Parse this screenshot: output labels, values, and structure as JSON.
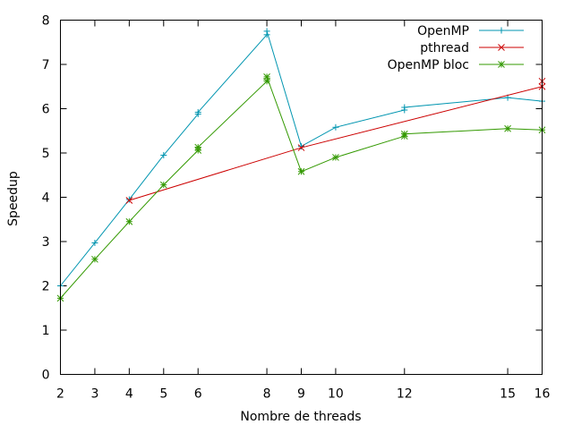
{
  "chart_data": {
    "type": "line",
    "title": "",
    "xlabel": "Nombre de threads",
    "ylabel": "Speedup",
    "x_ticks": [
      2,
      3,
      4,
      5,
      6,
      8,
      9,
      10,
      12,
      15,
      16
    ],
    "y_ticks": [
      0,
      1,
      2,
      3,
      4,
      5,
      6,
      7,
      8
    ],
    "xlim": [
      2,
      16
    ],
    "ylim": [
      0,
      8
    ],
    "grid": false,
    "legend_position": "top-right",
    "series": [
      {
        "name": "OpenMP",
        "color": "#0095b0",
        "marker": "plus",
        "x": [
          2,
          3,
          4,
          5,
          6,
          6,
          8,
          8,
          9,
          10,
          12,
          12,
          15,
          16
        ],
        "y": [
          2.0,
          2.97,
          3.95,
          4.95,
          5.88,
          5.92,
          7.67,
          7.75,
          5.15,
          5.58,
          5.97,
          6.03,
          6.25,
          6.17
        ]
      },
      {
        "name": "pthread",
        "color": "#cc0000",
        "marker": "cross",
        "x": [
          4,
          9,
          16,
          16
        ],
        "y": [
          3.93,
          5.12,
          6.5,
          6.62
        ]
      },
      {
        "name": "OpenMP bloc",
        "color": "#339900",
        "marker": "star",
        "x": [
          2,
          3,
          4,
          5,
          6,
          6,
          8,
          8,
          9,
          10,
          12,
          12,
          15,
          16
        ],
        "y": [
          1.72,
          2.6,
          3.45,
          4.28,
          5.06,
          5.13,
          6.62,
          6.72,
          4.58,
          4.9,
          5.38,
          5.43,
          5.55,
          5.52
        ]
      }
    ]
  }
}
